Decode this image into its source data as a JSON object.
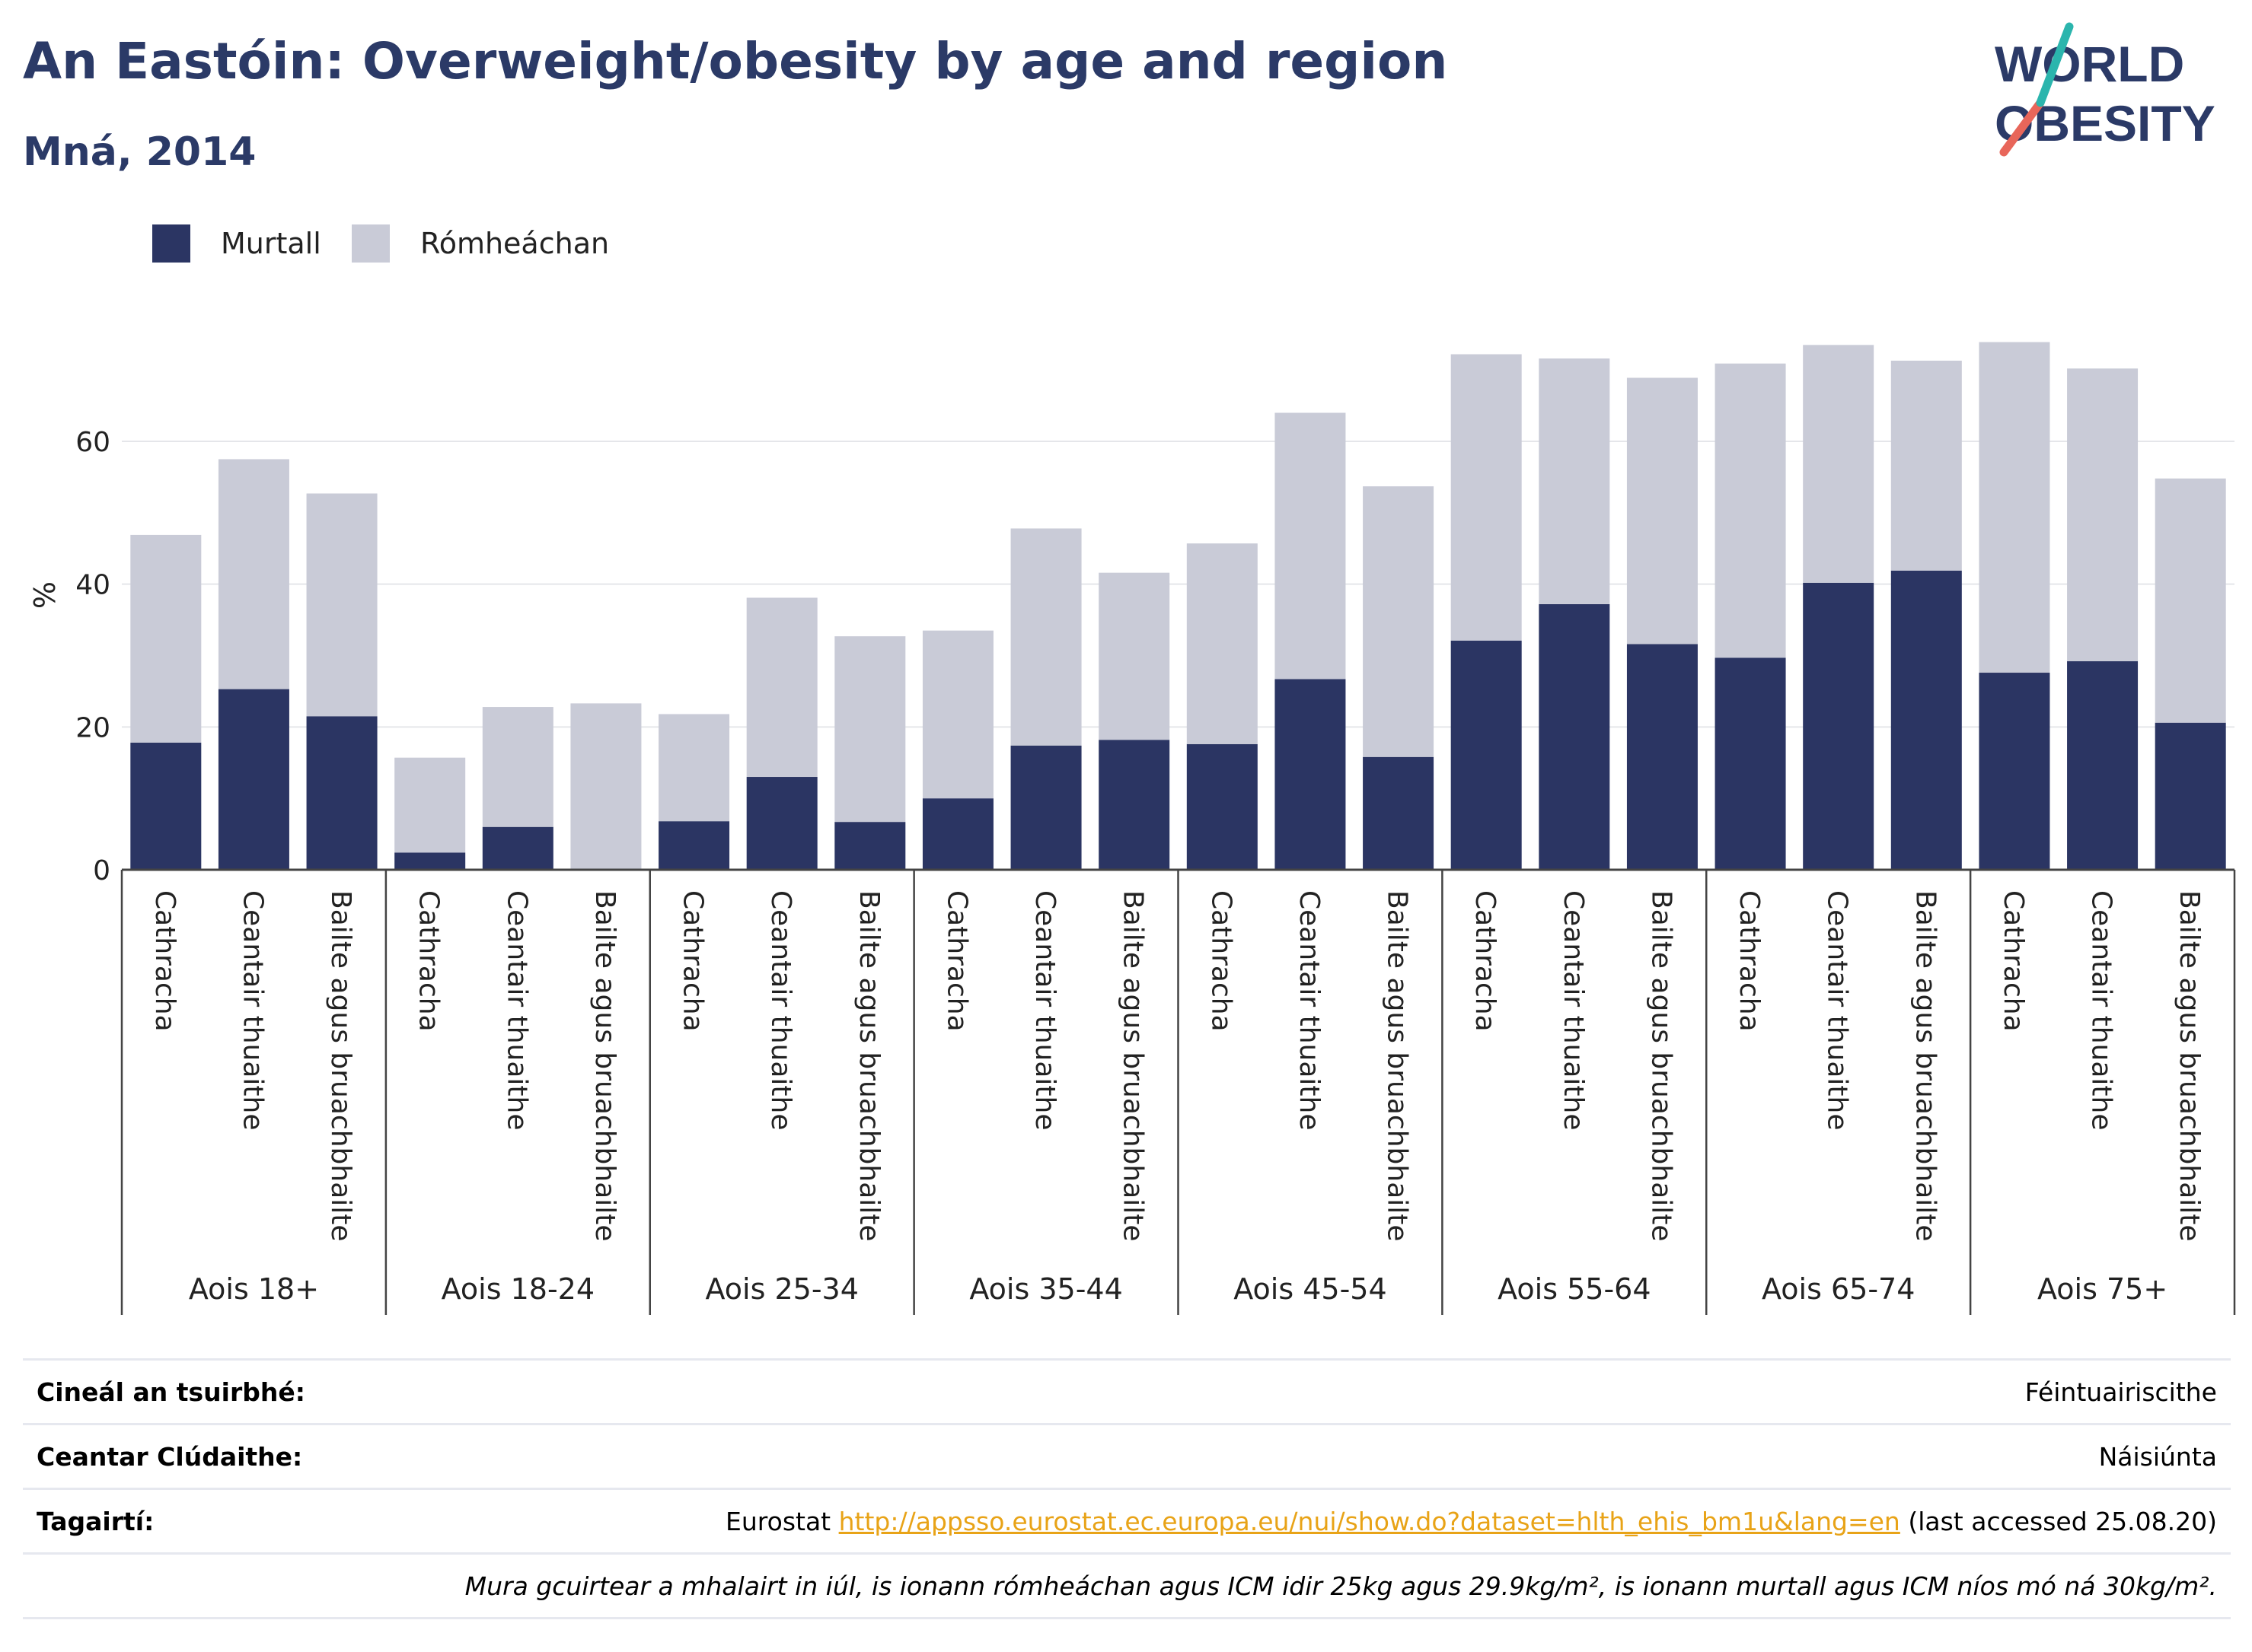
{
  "header": {
    "title": "An Eastóin: Overweight/obesity by age and region",
    "subtitle": "Mná, 2014"
  },
  "logo": {
    "line1": "WORLD",
    "line2": "OBESITY"
  },
  "colors": {
    "obese": "#2b3563",
    "overweight": "#c9cbd7",
    "title": "#2b3a67",
    "link": "#e8a317"
  },
  "legend": [
    {
      "label": "Murtall",
      "color": "#2b3563"
    },
    {
      "label": "Rómheáchan",
      "color": "#c9cbd7"
    }
  ],
  "chart_data": {
    "type": "bar",
    "stacked": true,
    "ylabel": "%",
    "ylim": [
      0,
      78
    ],
    "yticks": [
      0,
      20,
      40,
      60
    ],
    "grid": true,
    "legend_position": "top-left",
    "groups": [
      "Aois 18+",
      "Aois 18-24",
      "Aois 25-34",
      "Aois 35-44",
      "Aois 45-54",
      "Aois 55-64",
      "Aois 65-74",
      "Aois 75+"
    ],
    "categories": [
      "Cathracha",
      "Ceantair thuaithe",
      "Bailte agus bruachbhailte"
    ],
    "series": [
      {
        "name": "Murtall",
        "values": [
          [
            17.8,
            25.3,
            21.5
          ],
          [
            2.4,
            6.0,
            0.0
          ],
          [
            6.8,
            13.0,
            6.7
          ],
          [
            10.0,
            17.4,
            18.2
          ],
          [
            17.6,
            26.7,
            15.8
          ],
          [
            32.1,
            37.2,
            31.6
          ],
          [
            29.7,
            40.2,
            41.9
          ],
          [
            27.6,
            29.2,
            20.6
          ]
        ]
      },
      {
        "name": "Rómheáchan",
        "values": [
          [
            29.1,
            32.2,
            31.2
          ],
          [
            13.3,
            16.8,
            23.3
          ],
          [
            15.0,
            25.1,
            26.0
          ],
          [
            23.5,
            30.4,
            23.4
          ],
          [
            28.1,
            37.3,
            37.9
          ],
          [
            40.1,
            34.4,
            37.3
          ],
          [
            41.2,
            33.3,
            29.4
          ],
          [
            46.3,
            41.0,
            34.2
          ]
        ]
      }
    ]
  },
  "info": {
    "survey_label": "Cineál an tsuirbhé:",
    "survey_value": "Féintuairiscithe",
    "coverage_label": "Ceantar Clúdaithe:",
    "coverage_value": "Náisiúnta",
    "refs_label": "Tagairtí:",
    "refs_source": "Eurostat ",
    "refs_link": "http://appsso.eurostat.ec.europa.eu/nui/show.do?dataset=hlth_ehis_bm1u&lang=en",
    "refs_accessed": " (last accessed 25.08.20)",
    "note": "Mura gcuirtear a mhalairt in iúl, is ionann rómheáchan agus ICM idir 25kg agus 29.9kg/m², is ionann murtall agus ICM níos mó ná 30kg/m²."
  }
}
